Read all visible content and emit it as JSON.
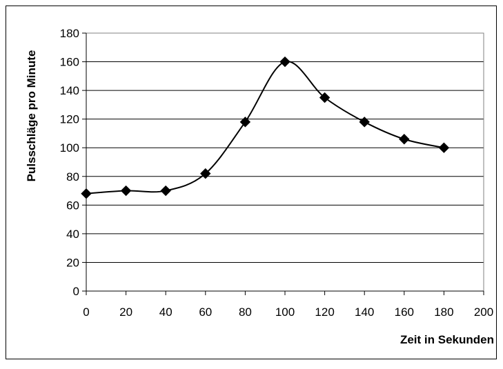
{
  "chart_data": {
    "type": "line",
    "title": "",
    "xlabel": "Zeit in Sekunden",
    "ylabel": "Pulsschläge pro Minute",
    "xlim": [
      0,
      200
    ],
    "ylim": [
      0,
      180
    ],
    "xticks": [
      0,
      20,
      40,
      60,
      80,
      100,
      120,
      140,
      160,
      180,
      200
    ],
    "yticks": [
      0,
      20,
      40,
      60,
      80,
      100,
      120,
      140,
      160,
      180
    ],
    "grid": "horizontal",
    "legend": "none",
    "line_style": "smoothed",
    "series": [
      {
        "color": "#000000",
        "marker": "diamond",
        "x": [
          0,
          20,
          40,
          60,
          80,
          100,
          120,
          140,
          160,
          180
        ],
        "y": [
          68,
          70,
          70,
          82,
          118,
          160,
          135,
          118,
          106,
          100
        ]
      }
    ]
  }
}
